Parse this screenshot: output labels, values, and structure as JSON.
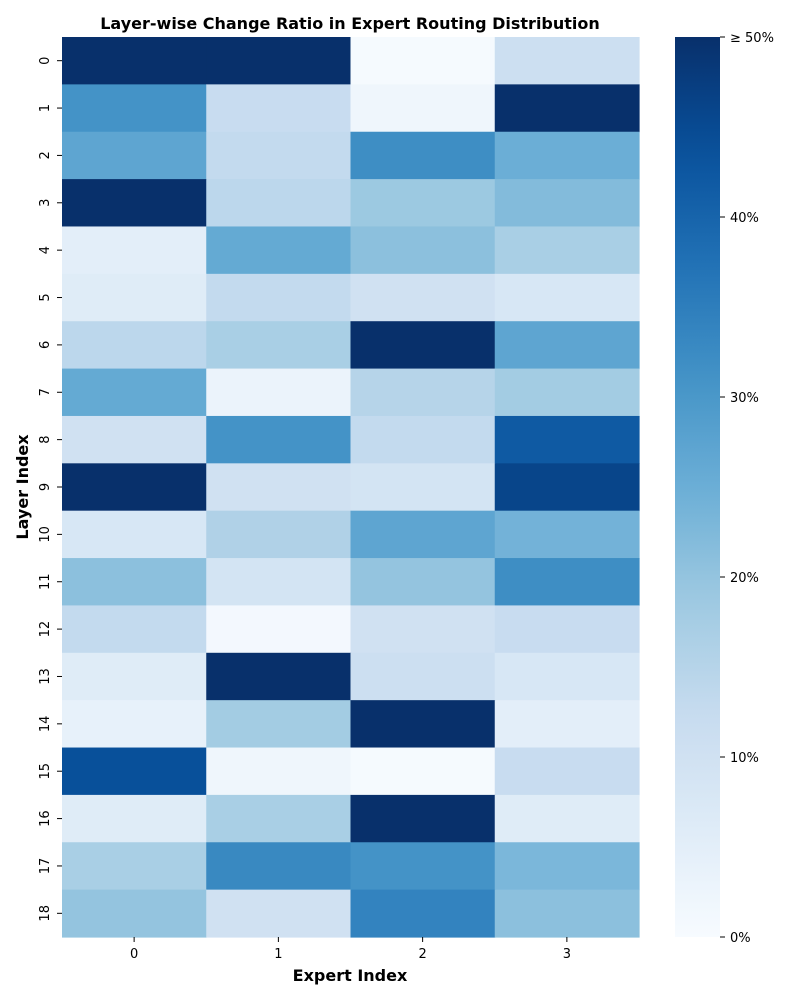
{
  "chart_data": {
    "type": "heatmap",
    "title": "Layer-wise Change Ratio in Expert Routing Distribution",
    "xlabel": "Expert Index",
    "ylabel": "Layer Index",
    "x_categories": [
      "0",
      "1",
      "2",
      "3"
    ],
    "y_categories": [
      "0",
      "1",
      "2",
      "3",
      "4",
      "5",
      "6",
      "7",
      "8",
      "9",
      "10",
      "11",
      "12",
      "13",
      "14",
      "15",
      "16",
      "17",
      "18"
    ],
    "value_range": [
      0,
      50
    ],
    "unit": "%",
    "colormap": "Blues",
    "values": [
      [
        55,
        55,
        0.5,
        11
      ],
      [
        31,
        12,
        2,
        55
      ],
      [
        27,
        13,
        32,
        25
      ],
      [
        55,
        14,
        19,
        22
      ],
      [
        5,
        26,
        21,
        17
      ],
      [
        6,
        13,
        10,
        8
      ],
      [
        14,
        17,
        55,
        27
      ],
      [
        26,
        3,
        15,
        18
      ],
      [
        10,
        31,
        13,
        42
      ],
      [
        55,
        10,
        9,
        46
      ],
      [
        8,
        16,
        27,
        24
      ],
      [
        21,
        9,
        20,
        32
      ],
      [
        13,
        1,
        10,
        12
      ],
      [
        6,
        55,
        11,
        8
      ],
      [
        4,
        18,
        55,
        5
      ],
      [
        44,
        2,
        0.5,
        12
      ],
      [
        6,
        17,
        55,
        6
      ],
      [
        17,
        33,
        31,
        23
      ],
      [
        20,
        10,
        34,
        21
      ]
    ],
    "colorbar": {
      "ticks": [
        0,
        10,
        20,
        30,
        40,
        50
      ],
      "tick_labels": [
        "0%",
        "10%",
        "20%",
        "30%",
        "40%",
        "≥ 50%"
      ]
    },
    "grid": false,
    "legend": "colorbar-right"
  }
}
